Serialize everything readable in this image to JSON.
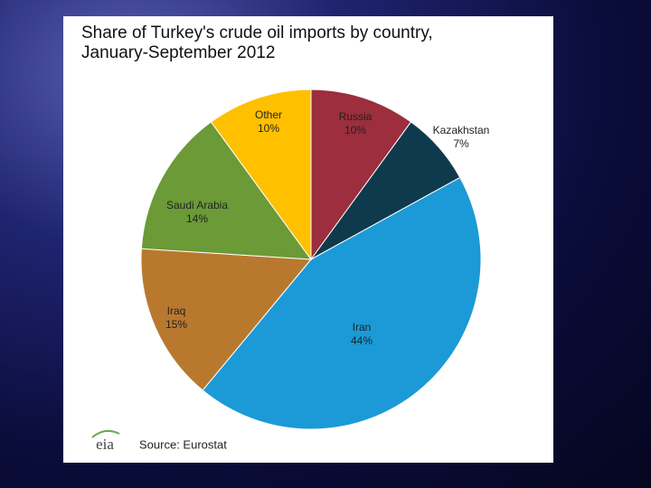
{
  "chart_data": {
    "type": "pie",
    "title": "Share of Turkey's crude oil imports by country, January-September 2012",
    "categories": [
      "Russia",
      "Kazakhstan",
      "Iran",
      "Iraq",
      "Saudi Arabia",
      "Other"
    ],
    "values": [
      10,
      7,
      44,
      15,
      14,
      10
    ],
    "value_labels": [
      "10%",
      "7%",
      "44%",
      "15%",
      "14%",
      "10%"
    ],
    "colors": [
      "#9c2e3d",
      "#0f3a4e",
      "#1b9ad7",
      "#b8792f",
      "#6b9a36",
      "#ffc000"
    ],
    "source": "Source: Eurostat",
    "logo": "eia"
  }
}
